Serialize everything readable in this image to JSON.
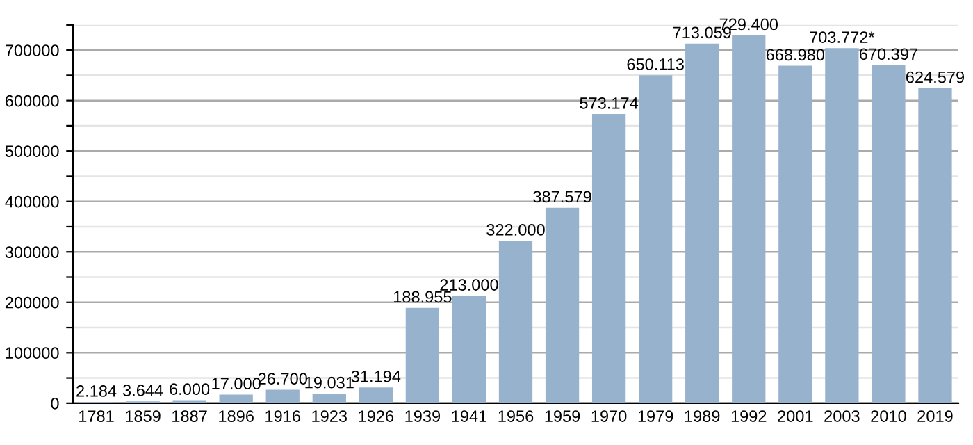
{
  "chart_data": {
    "type": "bar",
    "categories": [
      "1781",
      "1859",
      "1887",
      "1896",
      "1916",
      "1923",
      "1926",
      "1939",
      "1941",
      "1956",
      "1959",
      "1970",
      "1979",
      "1989",
      "1992",
      "2001",
      "2003",
      "2010",
      "2019"
    ],
    "values": [
      2184,
      3644,
      6000,
      17000,
      26700,
      19031,
      31194,
      188955,
      213000,
      322000,
      387579,
      573174,
      650113,
      713059,
      729400,
      668980,
      703772,
      670397,
      624579
    ],
    "value_labels": [
      "2.184",
      "3.644",
      "6.000",
      "17.000",
      "26.700",
      "19.031",
      "31.194",
      "188.955",
      "213.000",
      "322.000",
      "387.579",
      "573.174",
      "650.113",
      "713.059",
      "729.400",
      "668.980",
      "703.772*",
      "670.397",
      "624.579"
    ],
    "color": "#97b2cc",
    "ylim": [
      0,
      750000
    ],
    "yticks": [
      0,
      {
        "value": 50000,
        "label": null
      },
      100000,
      {
        "value": 150000,
        "label": null
      },
      200000,
      {
        "value": 250000,
        "label": null
      },
      300000,
      {
        "value": 350000,
        "label": null
      },
      400000,
      {
        "value": 450000,
        "label": null
      },
      500000,
      {
        "value": 550000,
        "label": null
      },
      600000,
      {
        "value": 650000,
        "label": null
      },
      700000,
      {
        "value": 750000,
        "label": null
      }
    ],
    "grid": "y"
  }
}
